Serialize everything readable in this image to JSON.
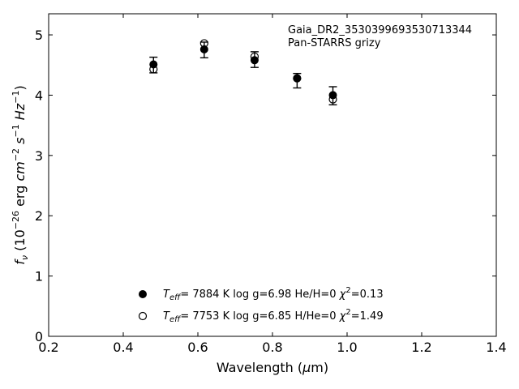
{
  "chart_data": {
    "type": "scatter",
    "annotation": [
      "Gaia_DR2_3530399693530713344",
      "Pan-STARRS grizy"
    ],
    "xlabel": "Wavelength (μm)",
    "ylabel": "f_ν (10^-26 erg cm^-2 s^-1 Hz^-1)",
    "xlim": [
      0.2,
      1.4
    ],
    "ylim": [
      0,
      5.35
    ],
    "xticks": [
      0.2,
      0.4,
      0.6,
      0.8,
      1.0,
      1.2,
      1.4
    ],
    "xtick_labels": [
      "0.2",
      "0.4",
      "0.6",
      "0.8",
      "1.0",
      "1.2",
      "1.4"
    ],
    "yticks": [
      0,
      1,
      2,
      3,
      4,
      5
    ],
    "ytick_labels": [
      "0",
      "1",
      "2",
      "3",
      "4",
      "5"
    ],
    "grid": false,
    "legend_position": "bottom-center",
    "observed": {
      "x": [
        0.481,
        0.617,
        0.752,
        0.866,
        0.962
      ],
      "y": [
        4.5,
        4.75,
        4.59,
        4.24,
        3.99
      ],
      "yerr": [
        0.13,
        0.13,
        0.13,
        0.12,
        0.15
      ]
    },
    "series": [
      {
        "marker": "filled",
        "legend": {
          "teff_value": "7884 K",
          "logg": "log g=6.98",
          "comp": "He/H=0",
          "chi2": "=0.13"
        },
        "x": [
          0.481,
          0.617,
          0.752,
          0.866,
          0.962
        ],
        "y": [
          4.51,
          4.76,
          4.58,
          4.28,
          4.0
        ]
      },
      {
        "marker": "open",
        "legend": {
          "teff_value": "7753 K",
          "logg": "log g=6.85",
          "comp": "H/He=0",
          "chi2": "=1.49"
        },
        "x": [
          0.481,
          0.617,
          0.752,
          0.866,
          0.962
        ],
        "y": [
          4.43,
          4.86,
          4.64,
          4.28,
          3.93
        ]
      }
    ]
  }
}
